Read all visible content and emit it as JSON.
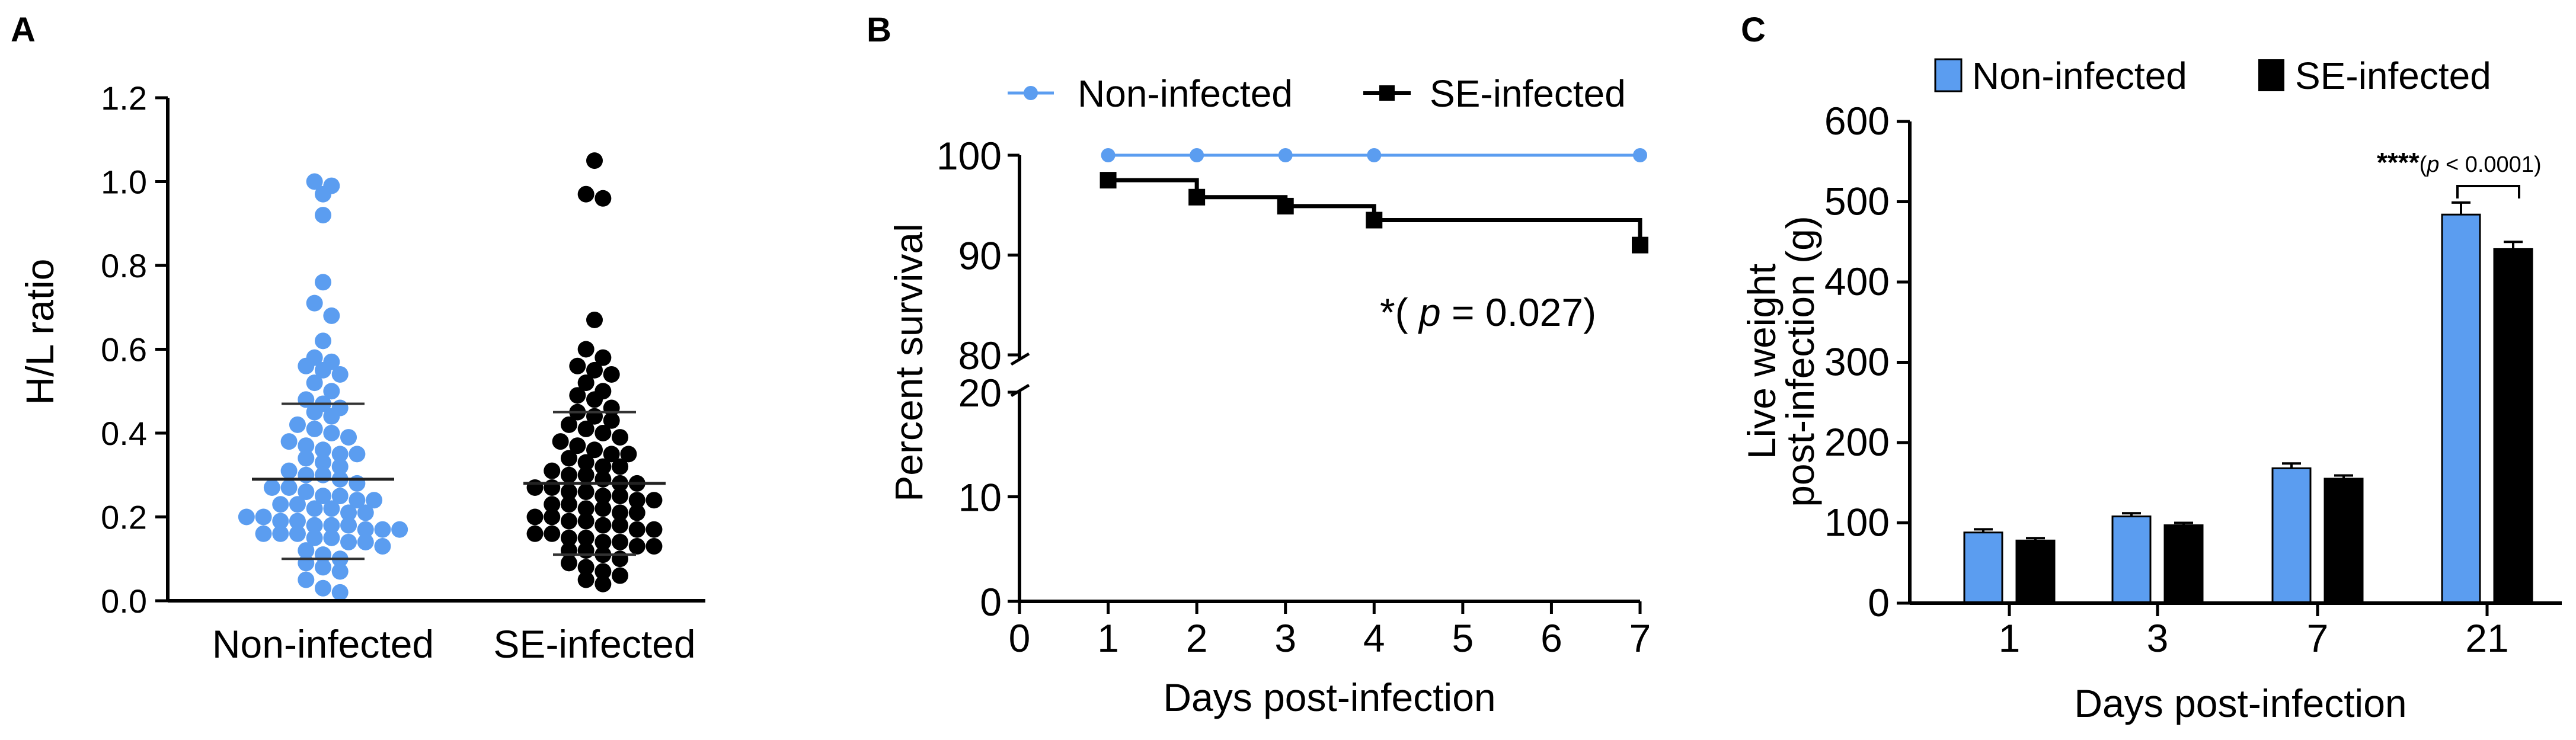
{
  "colors": {
    "non_infected": "#5b9df0",
    "se_infected": "#000000",
    "axis": "#000000"
  },
  "chart_data": [
    {
      "panel": "A",
      "type": "scatter",
      "title": "",
      "xlabel": "",
      "ylabel": "H/L ratio",
      "categories": [
        "Non-infected",
        "SE-infected"
      ],
      "ylim": [
        0.0,
        1.2
      ],
      "yticks": [
        0.0,
        0.2,
        0.4,
        0.6,
        0.8,
        1.0,
        1.2
      ],
      "ytick_labels": [
        "0.0",
        "0.2",
        "0.4",
        "0.6",
        "0.8",
        "1.0",
        "1.2"
      ],
      "series": [
        {
          "name": "Non-infected",
          "mean": 0.29,
          "sd_low": 0.1,
          "sd_high": 0.47,
          "values": [
            1.0,
            0.99,
            0.97,
            0.92,
            0.76,
            0.71,
            0.68,
            0.62,
            0.58,
            0.57,
            0.56,
            0.55,
            0.54,
            0.52,
            0.5,
            0.48,
            0.47,
            0.46,
            0.45,
            0.44,
            0.42,
            0.41,
            0.4,
            0.39,
            0.38,
            0.37,
            0.36,
            0.35,
            0.35,
            0.34,
            0.33,
            0.32,
            0.31,
            0.3,
            0.3,
            0.29,
            0.28,
            0.27,
            0.27,
            0.26,
            0.25,
            0.25,
            0.24,
            0.24,
            0.23,
            0.23,
            0.22,
            0.22,
            0.21,
            0.21,
            0.2,
            0.2,
            0.19,
            0.19,
            0.18,
            0.18,
            0.18,
            0.17,
            0.17,
            0.17,
            0.16,
            0.16,
            0.16,
            0.15,
            0.15,
            0.14,
            0.14,
            0.13,
            0.12,
            0.11,
            0.1,
            0.09,
            0.08,
            0.07,
            0.05,
            0.03,
            0.02
          ]
        },
        {
          "name": "SE-infected",
          "mean": 0.28,
          "sd_low": 0.11,
          "sd_high": 0.45,
          "values": [
            1.05,
            0.97,
            0.96,
            0.67,
            0.6,
            0.58,
            0.56,
            0.55,
            0.54,
            0.52,
            0.5,
            0.49,
            0.48,
            0.46,
            0.45,
            0.44,
            0.43,
            0.42,
            0.41,
            0.4,
            0.39,
            0.38,
            0.37,
            0.36,
            0.35,
            0.35,
            0.34,
            0.33,
            0.32,
            0.32,
            0.31,
            0.3,
            0.3,
            0.29,
            0.28,
            0.28,
            0.27,
            0.27,
            0.26,
            0.26,
            0.25,
            0.25,
            0.24,
            0.24,
            0.23,
            0.23,
            0.22,
            0.22,
            0.21,
            0.21,
            0.2,
            0.2,
            0.19,
            0.19,
            0.18,
            0.18,
            0.17,
            0.17,
            0.16,
            0.16,
            0.15,
            0.15,
            0.14,
            0.14,
            0.13,
            0.13,
            0.12,
            0.12,
            0.11,
            0.1,
            0.09,
            0.08,
            0.07,
            0.06,
            0.05,
            0.04
          ]
        }
      ]
    },
    {
      "panel": "B",
      "type": "line",
      "title": "",
      "xlabel": "Days post-infection",
      "ylabel": "Percent survival",
      "x": [
        0,
        1,
        2,
        3,
        4,
        5,
        6,
        7
      ],
      "xlim": [
        0,
        7
      ],
      "xtick_labels": [
        "0",
        "1",
        "2",
        "3",
        "4",
        "5",
        "6",
        "7"
      ],
      "y_lower_ticks": [
        0,
        10,
        20
      ],
      "y_upper_ticks": [
        80,
        90,
        100
      ],
      "ytick_labels": [
        "0",
        "10",
        "20",
        "80",
        "90",
        "100"
      ],
      "legend": [
        "Non-infected",
        "SE-infected"
      ],
      "series": [
        {
          "name": "Non-infected",
          "x": [
            1,
            2,
            3,
            4,
            7
          ],
          "y": [
            100,
            100,
            100,
            100,
            100
          ]
        },
        {
          "name": "SE-infected",
          "x": [
            1,
            2,
            3,
            4,
            7
          ],
          "y": [
            97.5,
            95.8,
            94.9,
            93.5,
            91.0
          ]
        }
      ],
      "annotation_prefix": "*( ",
      "annotation_p": "p",
      "annotation_suffix": " = 0.027)"
    },
    {
      "panel": "C",
      "type": "bar",
      "title": "",
      "xlabel": "Days post-infection",
      "ylabel_line1": "Live weight",
      "ylabel_line2": "post-infection (g)",
      "categories": [
        "1",
        "3",
        "7",
        "21"
      ],
      "ylim": [
        0,
        600
      ],
      "yticks": [
        0,
        100,
        200,
        300,
        400,
        500,
        600
      ],
      "ytick_labels": [
        "0",
        "100",
        "200",
        "300",
        "400",
        "500",
        "600"
      ],
      "legend": [
        "Non-infected",
        "SE-infected"
      ],
      "series": [
        {
          "name": "Non-infected",
          "values": [
            88,
            108,
            168,
            484
          ],
          "errors": [
            4,
            4,
            6,
            15
          ]
        },
        {
          "name": "SE-infected",
          "values": [
            78,
            97,
            155,
            441
          ],
          "errors": [
            3,
            3,
            4,
            9
          ]
        }
      ],
      "annotation_stars": "****",
      "annotation_open": "(",
      "annotation_p": "p",
      "annotation_close": " < 0.0001)"
    }
  ]
}
